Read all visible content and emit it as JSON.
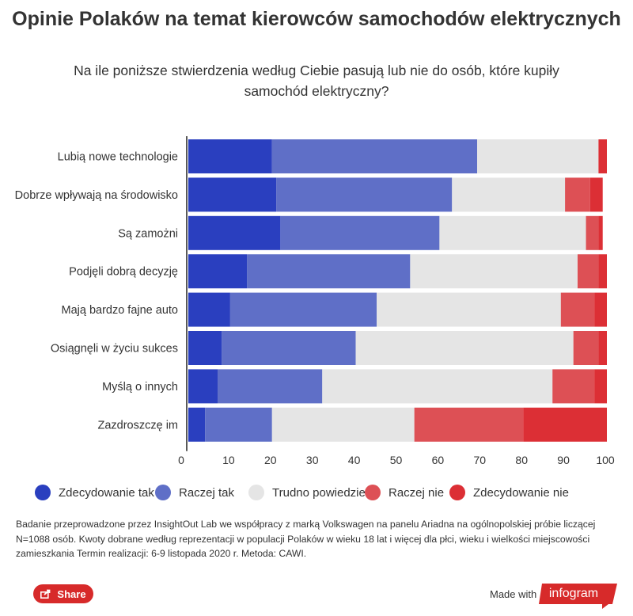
{
  "title": "Opinie Polaków na temat kierowców samochodów elektrycznych",
  "subtitle": "Na ile poniższe stwierdzenia według Ciebie pasują lub nie do osób, które kupiły samochód elektryczny?",
  "note": "Badanie przeprowadzone przez InsightOut Lab we współpracy z marką Volkswagen na panelu Ariadna na ogólnopolskiej próbie liczącej N=1088 osób. Kwoty dobrane według reprezentacji w populacji Polaków w wieku 18 lat i więcej dla płci, wieku i wielkości miejscowości zamieszkania Termin realizacji: 6-9 listopada 2020 r. Metoda: CAWI.",
  "share_label": "Share",
  "made_with": "Made with",
  "brand": "infogram",
  "colors": {
    "brand_red": "#d72a2a"
  },
  "chart_data": {
    "type": "bar",
    "orientation": "horizontal",
    "stacked": true,
    "categories": [
      "Lubią nowe technologie",
      "Dobrze wpływają na środowisko",
      "Są zamożni",
      "Podjęli dobrą decyzję",
      "Mają bardzo fajne auto",
      "Osiągnęli w życiu sukces",
      "Myślą o innych",
      "Zazdroszczę im"
    ],
    "series": [
      {
        "name": "Zdecydowanie tak",
        "color": "#2a3fbf",
        "values": [
          20,
          21,
          22,
          14,
          10,
          8,
          7,
          4
        ]
      },
      {
        "name": "Raczej tak",
        "color": "#5f6fc7",
        "values": [
          49,
          42,
          38,
          39,
          35,
          32,
          25,
          16
        ]
      },
      {
        "name": "Trudno powiedzieć",
        "color": "#e5e5e5",
        "values": [
          29,
          27,
          35,
          40,
          44,
          52,
          55,
          34
        ]
      },
      {
        "name": "Raczej nie",
        "color": "#dd5055",
        "values": [
          0,
          6,
          3,
          5,
          8,
          6,
          10,
          26
        ]
      },
      {
        "name": "Zdecydowanie nie",
        "color": "#dc2f35",
        "values": [
          2,
          3,
          1,
          2,
          3,
          2,
          3,
          20
        ]
      }
    ],
    "xlim": [
      0,
      100
    ],
    "xticks": [
      0,
      10,
      20,
      30,
      40,
      50,
      60,
      70,
      80,
      90,
      100
    ],
    "grid": false,
    "legend_position": "bottom"
  }
}
